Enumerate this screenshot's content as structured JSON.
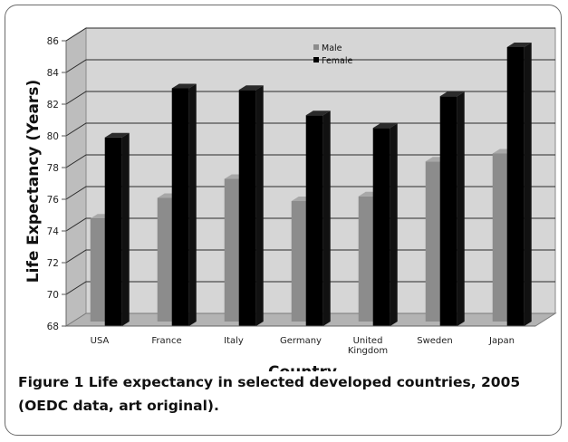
{
  "chart_data": {
    "type": "bar",
    "categories": [
      "USA",
      "France",
      "Italy",
      "Germany",
      "United Kingdom",
      "Sweden",
      "Japan"
    ],
    "category_labels": [
      [
        "USA"
      ],
      [
        "France"
      ],
      [
        "Italy"
      ],
      [
        "Germany"
      ],
      [
        "United",
        "Kingdom"
      ],
      [
        "Sweden"
      ],
      [
        "Japan"
      ]
    ],
    "series": [
      {
        "name": "Male",
        "values": [
          74.5,
          75.8,
          77.0,
          75.6,
          75.9,
          78.1,
          78.6
        ],
        "color": "#8c8c8c"
      },
      {
        "name": "Female",
        "values": [
          79.9,
          83.0,
          82.9,
          81.3,
          80.5,
          82.5,
          85.6
        ],
        "color": "#000000"
      }
    ],
    "xlabel": "Country",
    "ylabel": "Life Expectancy (Years)",
    "ylim": [
      68,
      86
    ],
    "yticks": [
      "68",
      "70",
      "72",
      "74",
      "76",
      "78",
      "80",
      "82",
      "84",
      "86"
    ],
    "grid": true,
    "legend": "top-center",
    "style": "3d-clustered-column"
  },
  "caption": {
    "label": "Figure 1",
    "text": "Life expectancy in selected developed countries, 2005 (OEDC data, art original)."
  }
}
